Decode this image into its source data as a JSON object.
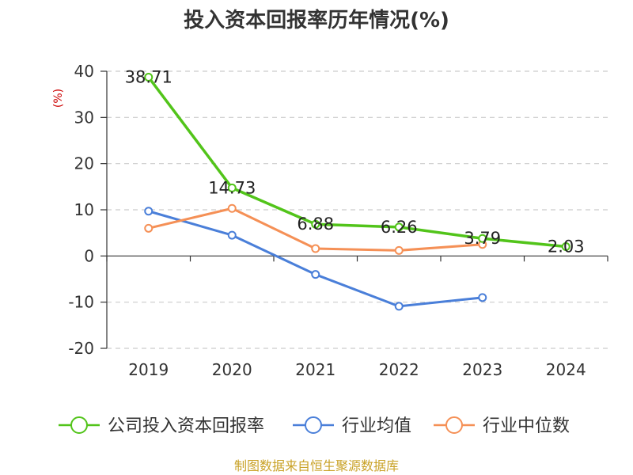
{
  "chart_data": {
    "type": "line",
    "title": "投入资本回报率历年情况(%)",
    "ylabel": "(%)",
    "xlabel": "",
    "x": [
      "2019",
      "2020",
      "2021",
      "2022",
      "2023",
      "2024"
    ],
    "ylim": [
      -20,
      40
    ],
    "yticks": [
      40,
      30,
      20,
      10,
      0,
      -10,
      -20
    ],
    "grid": true,
    "legend_position": "bottom",
    "series": [
      {
        "name": "公司投入资本回报率",
        "color": "#52c41a",
        "values": [
          38.71,
          14.73,
          6.88,
          6.26,
          3.79,
          2.03
        ],
        "labels": [
          "38.71",
          "14.73",
          "6.88",
          "6.26",
          "3.79",
          "2.03"
        ]
      },
      {
        "name": "行业均值",
        "color": "#4a7fd9",
        "values": [
          9.7,
          4.5,
          -4.0,
          -10.9,
          -9.0,
          null
        ]
      },
      {
        "name": "行业中位数",
        "color": "#f59056",
        "values": [
          6.0,
          10.3,
          1.6,
          1.2,
          2.5,
          null
        ]
      }
    ],
    "source": "制图数据来自恒生聚源数据库",
    "source_color": "#c9a227"
  }
}
